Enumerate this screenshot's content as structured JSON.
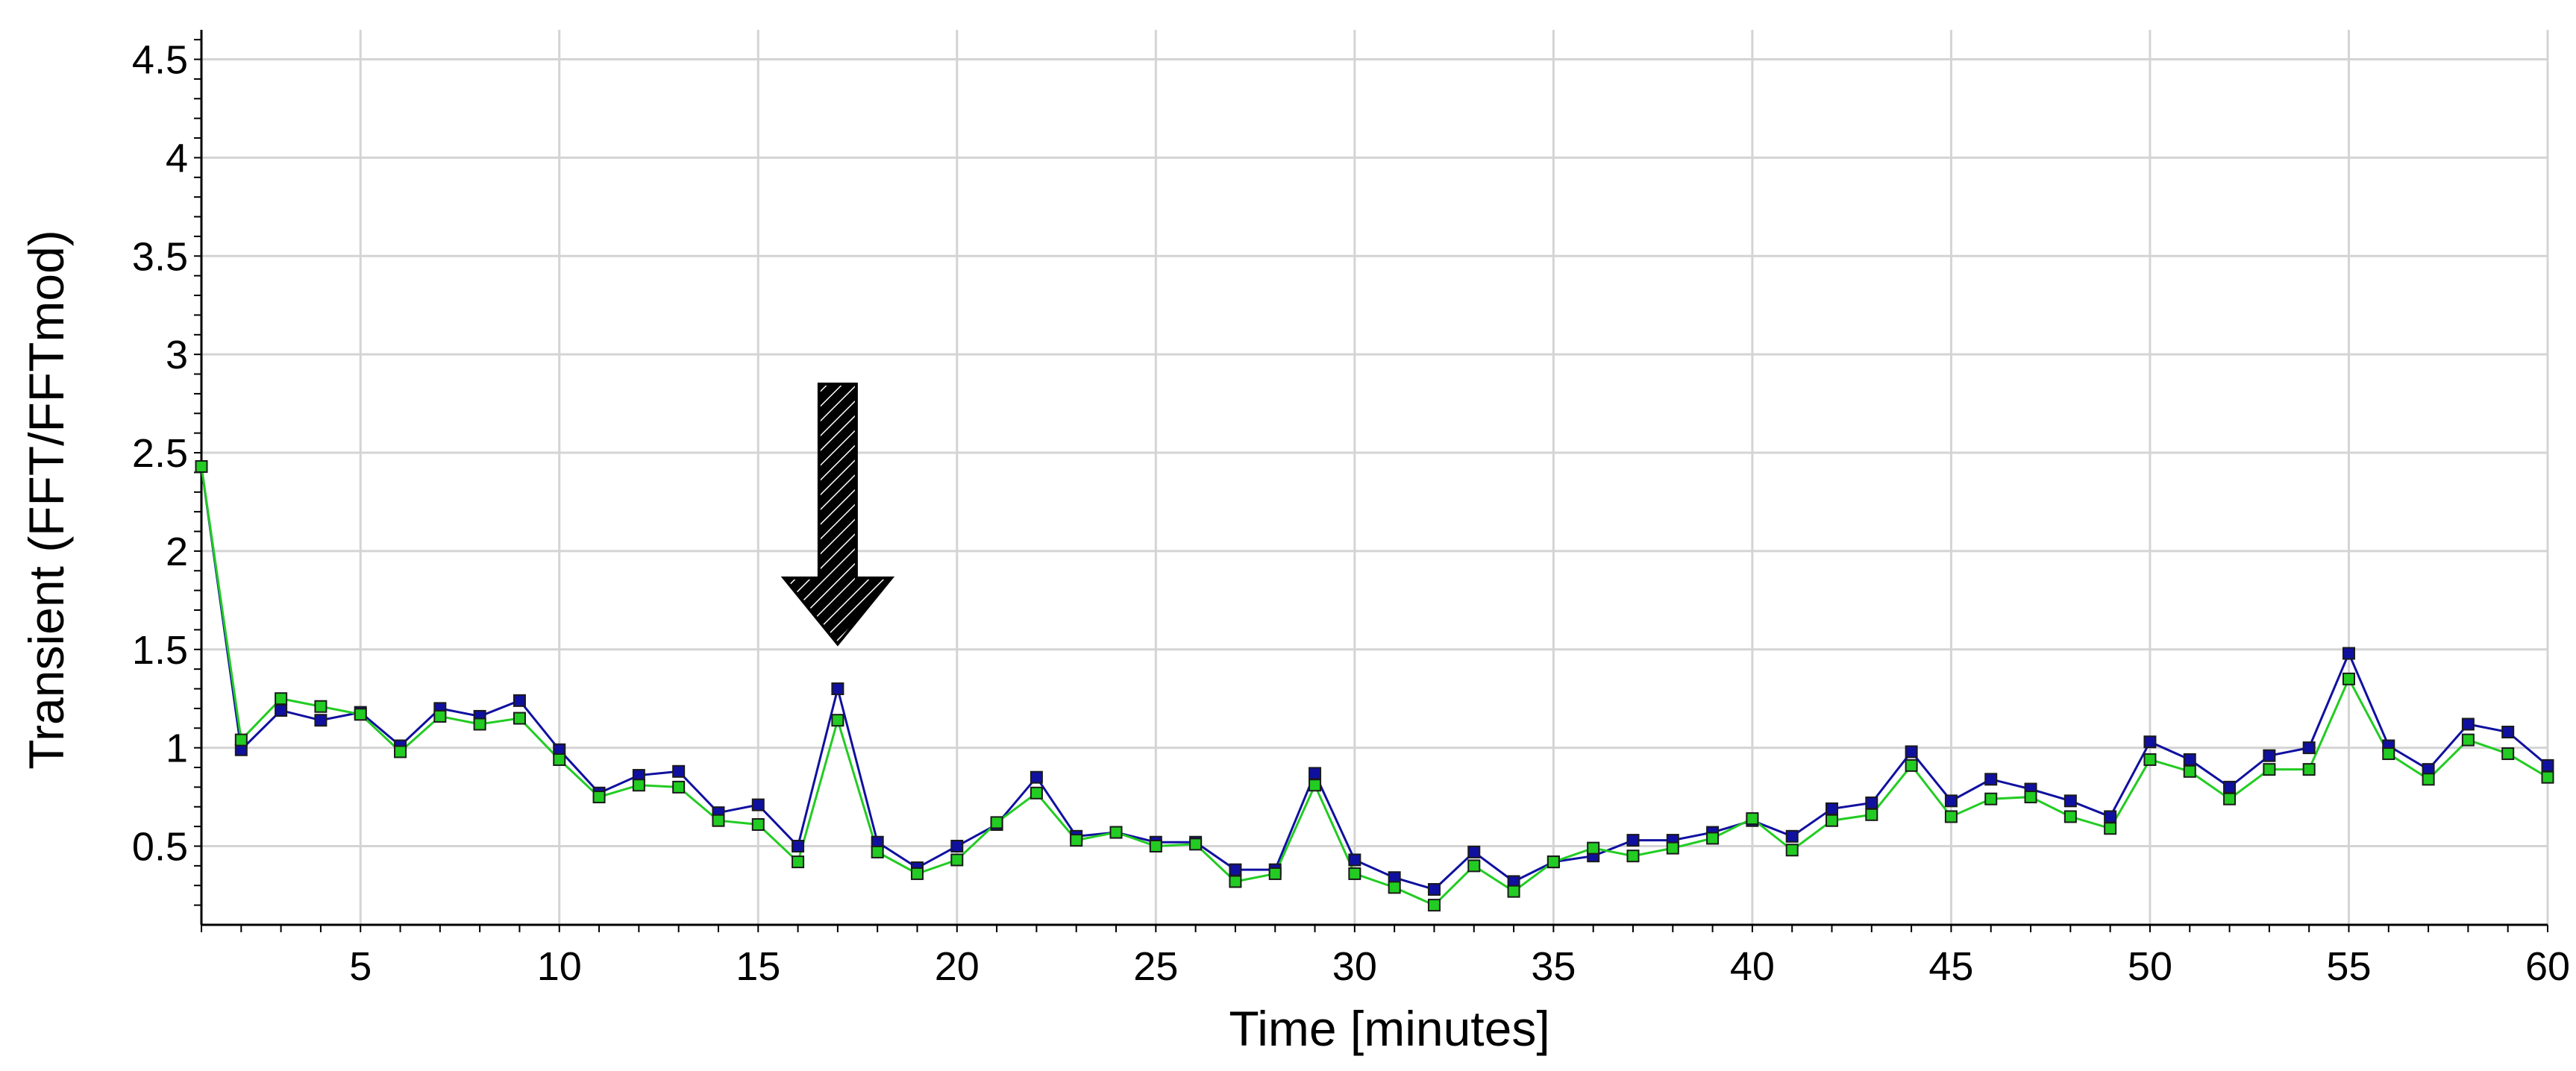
{
  "chart_data": {
    "type": "line",
    "xlabel": "Time [minutes]",
    "ylabel": "Transient (FFT/FFTmod)",
    "xlim": [
      1,
      60
    ],
    "ylim": [
      0.1,
      4.65
    ],
    "xticks": [
      5,
      10,
      15,
      20,
      25,
      30,
      35,
      40,
      45,
      50,
      55,
      60
    ],
    "yticks": [
      0.5,
      1,
      1.5,
      2,
      2.5,
      3,
      3.5,
      4,
      4.5
    ],
    "ytick_labels": [
      "0.5",
      "1",
      "1.5",
      "2",
      "2.5",
      "3",
      "3.5",
      "4",
      "4.5"
    ],
    "grid": true,
    "annotation": {
      "type": "arrow",
      "x": 17,
      "points_to_y": 1.3
    },
    "x": [
      1,
      2,
      3,
      4,
      5,
      6,
      7,
      8,
      9,
      10,
      11,
      12,
      13,
      14,
      15,
      16,
      17,
      18,
      19,
      20,
      21,
      22,
      23,
      24,
      25,
      26,
      27,
      28,
      29,
      30,
      31,
      32,
      33,
      34,
      35,
      36,
      37,
      38,
      39,
      40,
      41,
      42,
      43,
      44,
      45,
      46,
      47,
      48,
      49,
      50,
      51,
      52,
      53,
      54,
      55,
      56,
      57,
      58,
      59,
      60
    ],
    "series": [
      {
        "color": "#1010a0",
        "values": [
          2.43,
          0.99,
          1.19,
          1.14,
          1.18,
          1.01,
          1.2,
          1.16,
          1.24,
          0.99,
          0.77,
          0.86,
          0.88,
          0.67,
          0.71,
          0.5,
          1.3,
          0.52,
          0.39,
          0.5,
          0.61,
          0.85,
          0.55,
          0.57,
          0.52,
          0.52,
          0.38,
          0.38,
          0.87,
          0.43,
          0.34,
          0.28,
          0.47,
          0.32,
          0.42,
          0.45,
          0.53,
          0.53,
          0.57,
          0.63,
          0.55,
          0.69,
          0.72,
          0.98,
          0.73,
          0.84,
          0.79,
          0.73,
          0.65,
          1.03,
          0.94,
          0.8,
          0.96,
          1.0,
          1.48,
          1.01,
          0.89,
          1.12,
          1.08,
          0.91
        ]
      },
      {
        "color": "#22cc22",
        "values": [
          2.43,
          1.04,
          1.25,
          1.21,
          1.17,
          0.98,
          1.16,
          1.12,
          1.15,
          0.94,
          0.75,
          0.81,
          0.8,
          0.63,
          0.61,
          0.42,
          1.14,
          0.47,
          0.36,
          0.43,
          0.62,
          0.77,
          0.53,
          0.57,
          0.5,
          0.51,
          0.32,
          0.36,
          0.81,
          0.36,
          0.29,
          0.2,
          0.4,
          0.27,
          0.42,
          0.49,
          0.45,
          0.49,
          0.54,
          0.64,
          0.48,
          0.63,
          0.66,
          0.91,
          0.65,
          0.74,
          0.75,
          0.65,
          0.59,
          0.94,
          0.88,
          0.74,
          0.89,
          0.89,
          1.35,
          0.97,
          0.84,
          1.04,
          0.97,
          0.85
        ]
      }
    ]
  }
}
